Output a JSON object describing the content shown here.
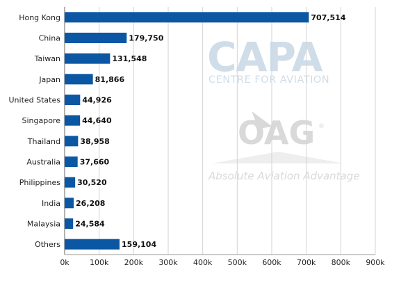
{
  "chart_data": {
    "type": "bar",
    "orientation": "horizontal",
    "categories": [
      "Hong Kong",
      "China",
      "Taiwan",
      "Japan",
      "United States",
      "Singapore",
      "Thailand",
      "Australia",
      "Philippines",
      "India",
      "Malaysia",
      "Others"
    ],
    "values": [
      707514,
      179750,
      131548,
      81866,
      44926,
      44640,
      38958,
      37660,
      30520,
      26208,
      24584,
      159104
    ],
    "data_labels": [
      "707,514",
      "179,750",
      "131,548",
      "81,866",
      "44,926",
      "44,640",
      "38,958",
      "37,660",
      "30,520",
      "26,208",
      "24,584",
      "159,104"
    ],
    "x_ticks": [
      "0k",
      "100k",
      "200k",
      "300k",
      "400k",
      "500k",
      "600k",
      "700k",
      "800k",
      "900k"
    ],
    "xlim": [
      0,
      900000
    ],
    "grid": "vertical",
    "bar_color": "#0b57a4",
    "title": "",
    "xlabel": "",
    "ylabel": ""
  },
  "watermarks": {
    "capa": "CAPA",
    "capa_sub": "CENTRE FOR AVIATION",
    "oag": "OAG",
    "oag_reg": "®",
    "oag_sub": "Absolute Aviation Advantage"
  }
}
